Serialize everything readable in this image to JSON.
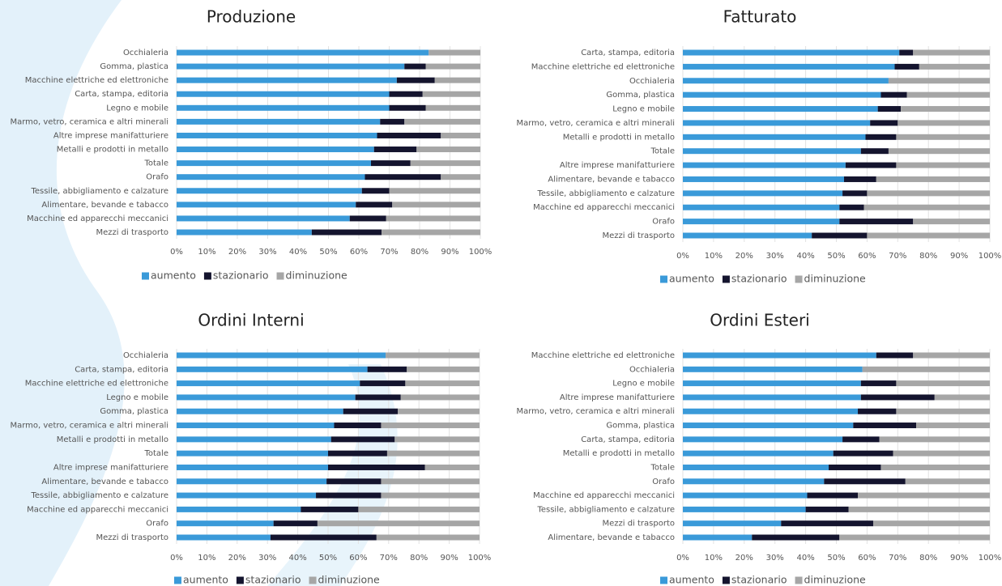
{
  "chart_data": [
    {
      "type": "bar",
      "orientation": "horizontal",
      "stacked": true,
      "title": "Produzione",
      "categories": [
        "Occhialeria",
        "Gomma, plastica",
        "Macchine elettriche ed elettroniche",
        "Carta, stampa, editoria",
        "Legno e mobile",
        "Marmo, vetro, ceramica e altri minerali",
        "Altre imprese manifatturiere",
        "Metalli e prodotti in metallo",
        "Totale",
        "Orafo",
        "Tessile, abbigliamento e calzature",
        "Alimentare, bevande e tabacco",
        "Macchine ed apparecchi meccanici",
        "Mezzi di trasporto"
      ],
      "series": [
        {
          "name": "aumento",
          "color": "#3a9ad9",
          "values": [
            83,
            75,
            72.5,
            70,
            70,
            67,
            66,
            65,
            64,
            62,
            61,
            59,
            57,
            44.5
          ]
        },
        {
          "name": "stazionario",
          "color": "#14142e",
          "values": [
            0,
            7,
            12.5,
            11,
            12,
            8,
            21,
            14,
            13,
            25,
            9,
            12,
            12,
            23
          ]
        },
        {
          "name": "diminuzione",
          "color": "#a6a6a6",
          "values": [
            17,
            18,
            15,
            19,
            18,
            25,
            13,
            21,
            23,
            13,
            30,
            29,
            31,
            32.5
          ]
        }
      ],
      "xlim": [
        0,
        100
      ],
      "xticks": [
        {
          "value": 0,
          "label": "0%"
        },
        {
          "value": 10,
          "label": "10%"
        },
        {
          "value": 20,
          "label": "20%"
        },
        {
          "value": 30,
          "label": "30%"
        },
        {
          "value": 40,
          "label": "40%"
        },
        {
          "value": 50,
          "label": "50%"
        },
        {
          "value": 60,
          "label": "60%"
        },
        {
          "value": 70,
          "label": "70%"
        },
        {
          "value": 80,
          "label": "80%"
        },
        {
          "value": 90,
          "label": "90%"
        },
        {
          "value": 100,
          "label": "100%"
        }
      ],
      "grid": true,
      "legend": "bottom"
    },
    {
      "type": "bar",
      "orientation": "horizontal",
      "stacked": true,
      "title": "Fatturato",
      "categories": [
        "Carta, stampa, editoria",
        "Macchine elettriche ed elettroniche",
        "Occhialeria",
        "Gomma, plastica",
        "Legno e mobile",
        "Marmo, vetro, ceramica e altri minerali",
        "Metalli e prodotti in metallo",
        "Totale",
        "Altre imprese manifatturiere",
        "Alimentare, bevande e tabacco",
        "Tessile, abbigliamento e calzature",
        "Macchine ed apparecchi meccanici",
        "Orafo",
        "Mezzi di trasporto"
      ],
      "series": [
        {
          "name": "aumento",
          "color": "#3a9ad9",
          "values": [
            70.5,
            69,
            67,
            64.5,
            63.5,
            61,
            59.5,
            58,
            53,
            52.5,
            52,
            51,
            51,
            42
          ]
        },
        {
          "name": "stazionario",
          "color": "#14142e",
          "values": [
            4.5,
            8,
            0,
            8.5,
            7.5,
            9,
            10,
            9,
            16.5,
            10.5,
            8,
            8,
            24,
            18
          ]
        },
        {
          "name": "diminuzione",
          "color": "#a6a6a6",
          "values": [
            25,
            23,
            33,
            27,
            29,
            30,
            30.5,
            33,
            30.5,
            37,
            40,
            41,
            25,
            40
          ]
        }
      ],
      "xlim": [
        0,
        100
      ],
      "xticks": [
        {
          "value": 0,
          "label": "0%"
        },
        {
          "value": 10,
          "label": "10%"
        },
        {
          "value": 20,
          "label": "20%"
        },
        {
          "value": 30,
          "label": "30%"
        },
        {
          "value": 40,
          "label": "40%"
        },
        {
          "value": 50,
          "label": "50%"
        },
        {
          "value": 60,
          "label": "60%"
        },
        {
          "value": 70,
          "label": "70%"
        },
        {
          "value": 80,
          "label": "80%"
        },
        {
          "value": 90,
          "label": "90%"
        },
        {
          "value": 100,
          "label": "100%"
        }
      ],
      "grid": true,
      "legend": "bottom"
    },
    {
      "type": "bar",
      "orientation": "horizontal",
      "stacked": true,
      "title": "Ordini Interni",
      "categories": [
        "Occhialeria",
        "Carta, stampa, editoria",
        "Macchine elettriche ed elettroniche",
        "Legno e mobile",
        "Gomma, plastica",
        "Marmo, vetro, ceramica e altri minerali",
        "Metalli e prodotti in metallo",
        "Totale",
        "Altre imprese manifatturiere",
        "Alimentare, bevande e tabacco",
        "Tessile, abbigliamento e calzature",
        "Macchine ed apparecchi meccanici",
        "Orafo",
        "Mezzi di trasporto"
      ],
      "series": [
        {
          "name": "aumento",
          "color": "#3a9ad9",
          "values": [
            69,
            63,
            60.5,
            59,
            55,
            52,
            51,
            50,
            50,
            49.5,
            46,
            41,
            32,
            31
          ]
        },
        {
          "name": "stazionario",
          "color": "#14142e",
          "values": [
            0,
            13,
            15,
            15,
            18,
            15.5,
            21,
            19.5,
            32,
            18,
            21.5,
            19,
            14.5,
            35
          ]
        },
        {
          "name": "diminuzione",
          "color": "#a6a6a6",
          "values": [
            31,
            24,
            24.5,
            26,
            27,
            32.5,
            28,
            30.5,
            18,
            32.5,
            32.5,
            40,
            53.5,
            34
          ]
        }
      ],
      "xlim": [
        0,
        100
      ],
      "xticks": [
        {
          "value": 0,
          "label": "0%"
        },
        {
          "value": 10,
          "label": "10%"
        },
        {
          "value": 20,
          "label": "20%"
        },
        {
          "value": 30,
          "label": "30%"
        },
        {
          "value": 40,
          "label": "40%"
        },
        {
          "value": 50,
          "label": "50%"
        },
        {
          "value": 60,
          "label": "60%"
        },
        {
          "value": 70,
          "label": "70%"
        },
        {
          "value": 80,
          "label": "80%"
        },
        {
          "value": 90,
          "label": "90%"
        },
        {
          "value": 100,
          "label": "100%"
        }
      ],
      "grid": true,
      "legend": "bottom"
    },
    {
      "type": "bar",
      "orientation": "horizontal",
      "stacked": true,
      "title": "Ordini Esteri",
      "categories": [
        "Macchine elettriche ed elettroniche",
        "Occhialeria",
        "Legno e mobile",
        "Altre imprese manifatturiere",
        "Marmo, vetro, ceramica e altri minerali",
        "Gomma, plastica",
        "Carta, stampa, editoria",
        "Metalli e prodotti in metallo",
        "Totale",
        "Orafo",
        "Macchine ed apparecchi meccanici",
        "Tessile, abbigliamento e calzature",
        "Mezzi di trasporto",
        "Alimentare, bevande e tabacco"
      ],
      "series": [
        {
          "name": "aumento",
          "color": "#3a9ad9",
          "values": [
            63,
            58.5,
            58,
            58,
            57,
            55.5,
            52,
            49,
            47.5,
            46,
            40.5,
            40,
            32,
            22.5
          ]
        },
        {
          "name": "stazionario",
          "color": "#14142e",
          "values": [
            12,
            0,
            11.5,
            24,
            12.5,
            20.5,
            12,
            19.5,
            17,
            26.5,
            16.5,
            14,
            30,
            28.5
          ]
        },
        {
          "name": "diminuzione",
          "color": "#a6a6a6",
          "values": [
            25,
            41.5,
            30.5,
            18,
            30.5,
            24,
            36,
            31.5,
            35.5,
            27.5,
            43,
            46,
            38,
            49
          ]
        }
      ],
      "xlim": [
        0,
        100
      ],
      "xticks": [
        {
          "value": 0,
          "label": "0%"
        },
        {
          "value": 10,
          "label": "10%"
        },
        {
          "value": 20,
          "label": "20%"
        },
        {
          "value": 30,
          "label": "30%"
        },
        {
          "value": 40,
          "label": "40%"
        },
        {
          "value": 50,
          "label": "50%"
        },
        {
          "value": 60,
          "label": "60%"
        },
        {
          "value": 70,
          "label": "70%"
        },
        {
          "value": 80,
          "label": "80%"
        },
        {
          "value": 90,
          "label": "90%"
        },
        {
          "value": 100,
          "label": "100%"
        }
      ],
      "grid": true,
      "legend": "bottom"
    }
  ]
}
